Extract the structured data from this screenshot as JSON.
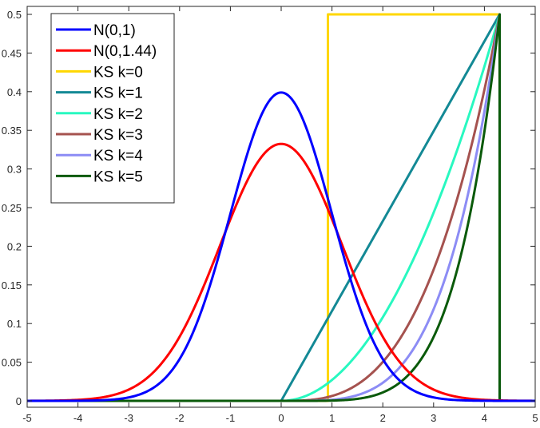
{
  "chart_data": {
    "type": "line",
    "title": "",
    "xlabel": "",
    "ylabel": "",
    "xlim": [
      -5,
      5
    ],
    "ylim": [
      0,
      0.5
    ],
    "grid": false,
    "legend_position": "top-left",
    "x_ticks": [
      "-5",
      "-4",
      "-3",
      "-2",
      "-1",
      "0",
      "1",
      "2",
      "3",
      "4",
      "5"
    ],
    "y_ticks": [
      "0",
      "0.05",
      "0.1",
      "0.15",
      "0.2",
      "0.25",
      "0.3",
      "0.35",
      "0.4",
      "0.45",
      "0.5"
    ],
    "series": [
      {
        "name": "N(0,1)",
        "color": "#0000ff",
        "kind": "normal",
        "mean": 0,
        "variance": 1
      },
      {
        "name": "N(0,1.44)",
        "color": "#ff0000",
        "kind": "normal",
        "mean": 0,
        "variance": 1.44
      },
      {
        "name": "KS k=0",
        "color": "#ffd700",
        "kind": "polyline",
        "points": [
          [
            -5,
            0
          ],
          [
            0.92,
            0
          ],
          [
            0.92,
            0.5
          ],
          [
            4.3,
            0.5
          ],
          [
            4.3,
            0
          ],
          [
            5,
            0
          ]
        ]
      },
      {
        "name": "KS k=1",
        "color": "#138995",
        "kind": "power",
        "k": 1,
        "x0": 0,
        "x1": 4.3,
        "peak": 0.5
      },
      {
        "name": "KS k=2",
        "color": "#28f8c0",
        "kind": "power",
        "k": 2,
        "x0": 0,
        "x1": 4.3,
        "peak": 0.5
      },
      {
        "name": "KS k=3",
        "color": "#a5524f",
        "kind": "power",
        "k": 3,
        "x0": 0,
        "x1": 4.3,
        "peak": 0.5
      },
      {
        "name": "KS k=4",
        "color": "#8c8cf5",
        "kind": "power",
        "k": 4,
        "x0": 0,
        "x1": 4.3,
        "peak": 0.5
      },
      {
        "name": "KS k=5",
        "color": "#0a5a0a",
        "kind": "power",
        "k": 5,
        "x0": 0,
        "x1": 4.3,
        "peak": 0.5
      }
    ]
  }
}
